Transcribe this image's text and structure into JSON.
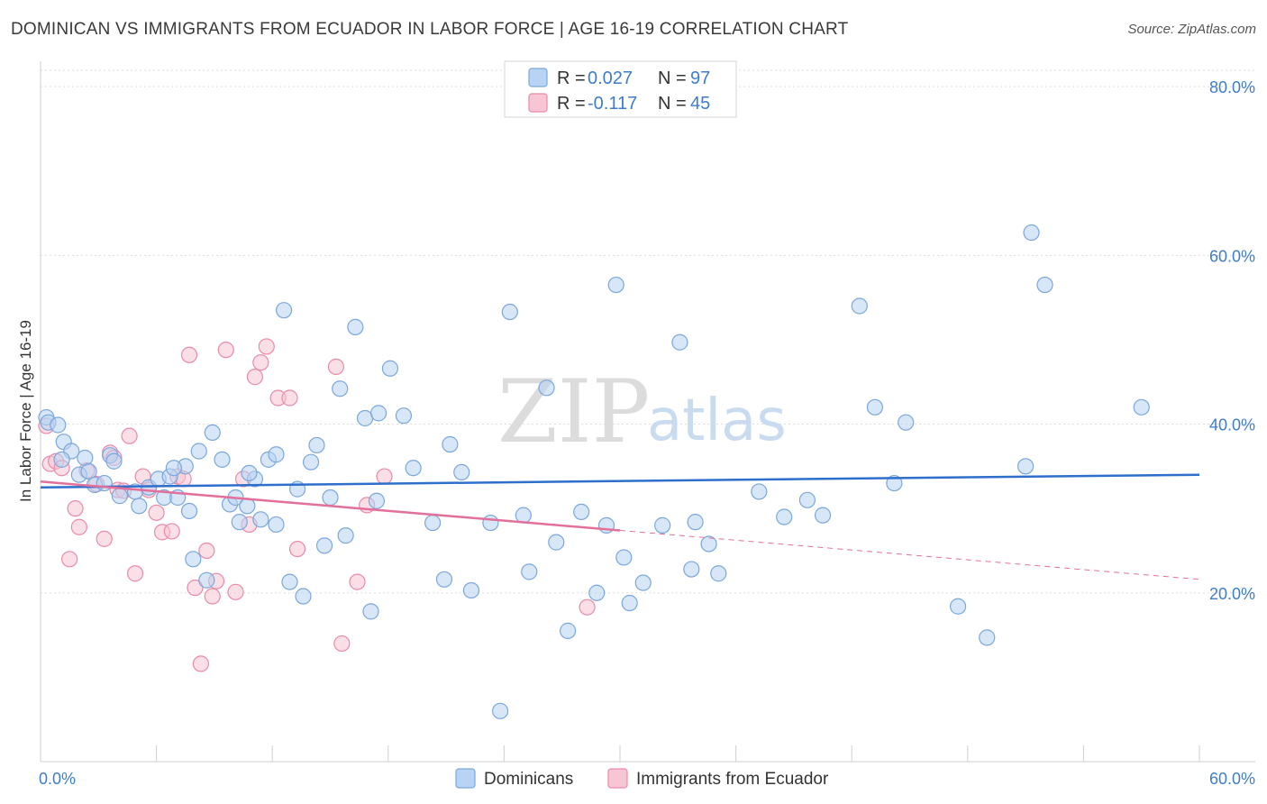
{
  "title": "DOMINICAN VS IMMIGRANTS FROM ECUADOR IN LABOR FORCE | AGE 16-19 CORRELATION CHART",
  "source": "Source: ZipAtlas.com",
  "watermark": {
    "zip": "ZIP",
    "atlas": "atlas"
  },
  "colors": {
    "blue_fill": "#b8d3f3",
    "blue_stroke": "#7aa7dc",
    "blue_line": "#2e6fcb",
    "pink_fill": "#f8c5d4",
    "pink_stroke": "#e98aa8",
    "pink_line": "#e2709a",
    "tick_text": "#3d7dcc",
    "grid": "#dddddd"
  },
  "legend": {
    "series1": {
      "r_label": "R =",
      "r_value": "0.027",
      "n_label": "N =",
      "n_value": "97"
    },
    "series2": {
      "r_label": "R =",
      "r_value": "-0.117",
      "n_label": "N =",
      "n_value": "45"
    }
  },
  "bottom_legend": [
    "Dominicans",
    "Immigrants from Ecuador"
  ],
  "chart_data": {
    "type": "scatter",
    "title": "DOMINICAN VS IMMIGRANTS FROM ECUADOR IN LABOR FORCE | AGE 16-19 CORRELATION CHART",
    "xlabel": "",
    "ylabel": "In Labor Force | Age 16-19",
    "xlim": [
      0,
      60
    ],
    "ylim": [
      0,
      83
    ],
    "x_tick_labels": [
      "0.0%",
      "60.0%"
    ],
    "y_ticks": [
      20,
      40,
      60,
      80
    ],
    "y_tick_labels": [
      "20.0%",
      "40.0%",
      "60.0%",
      "80.0%"
    ],
    "grid": true,
    "series": [
      {
        "name": "Dominicans",
        "R": 0.027,
        "N": 97,
        "trend": {
          "x": [
            0,
            60
          ],
          "y": [
            32.5,
            34.0
          ]
        },
        "points": [
          [
            0.3,
            40.8
          ],
          [
            0.4,
            40.2
          ],
          [
            0.9,
            39.9
          ],
          [
            1.2,
            37.9
          ],
          [
            1.6,
            36.8
          ],
          [
            2.0,
            34.0
          ],
          [
            2.3,
            36.0
          ],
          [
            2.5,
            34.4
          ],
          [
            2.8,
            32.8
          ],
          [
            3.3,
            33.0
          ],
          [
            3.6,
            36.3
          ],
          [
            4.1,
            31.5
          ],
          [
            4.9,
            32.0
          ],
          [
            5.1,
            30.3
          ],
          [
            5.6,
            32.5
          ],
          [
            6.1,
            33.5
          ],
          [
            6.4,
            31.3
          ],
          [
            6.7,
            33.8
          ],
          [
            7.1,
            31.3
          ],
          [
            7.5,
            35.0
          ],
          [
            7.7,
            29.7
          ],
          [
            7.9,
            24.0
          ],
          [
            8.2,
            36.8
          ],
          [
            8.6,
            21.5
          ],
          [
            8.9,
            39.0
          ],
          [
            9.4,
            35.8
          ],
          [
            9.8,
            30.5
          ],
          [
            10.1,
            31.3
          ],
          [
            10.3,
            28.4
          ],
          [
            10.7,
            30.3
          ],
          [
            11.1,
            33.5
          ],
          [
            11.4,
            28.7
          ],
          [
            11.8,
            35.8
          ],
          [
            12.2,
            36.4
          ],
          [
            12.6,
            53.5
          ],
          [
            12.9,
            21.3
          ],
          [
            13.3,
            32.3
          ],
          [
            13.6,
            19.6
          ],
          [
            14.0,
            35.5
          ],
          [
            14.3,
            37.5
          ],
          [
            14.7,
            25.6
          ],
          [
            15.0,
            31.3
          ],
          [
            15.5,
            44.2
          ],
          [
            15.8,
            26.8
          ],
          [
            16.3,
            51.5
          ],
          [
            16.8,
            40.7
          ],
          [
            17.1,
            17.8
          ],
          [
            17.5,
            41.3
          ],
          [
            18.1,
            46.6
          ],
          [
            18.8,
            41.0
          ],
          [
            19.3,
            34.8
          ],
          [
            20.3,
            28.3
          ],
          [
            20.9,
            21.6
          ],
          [
            21.2,
            37.6
          ],
          [
            21.8,
            34.3
          ],
          [
            22.3,
            20.3
          ],
          [
            23.3,
            28.3
          ],
          [
            23.8,
            6.0
          ],
          [
            24.3,
            53.3
          ],
          [
            25.3,
            22.5
          ],
          [
            26.2,
            44.3
          ],
          [
            26.7,
            26.0
          ],
          [
            27.3,
            15.5
          ],
          [
            28.0,
            29.6
          ],
          [
            28.8,
            20.0
          ],
          [
            29.3,
            28.0
          ],
          [
            29.8,
            56.5
          ],
          [
            30.2,
            24.2
          ],
          [
            30.5,
            18.8
          ],
          [
            31.2,
            21.2
          ],
          [
            32.2,
            28.0
          ],
          [
            33.1,
            49.7
          ],
          [
            33.7,
            22.8
          ],
          [
            34.6,
            25.8
          ],
          [
            35.1,
            22.3
          ],
          [
            37.2,
            32.0
          ],
          [
            38.5,
            29.0
          ],
          [
            39.7,
            31.0
          ],
          [
            40.5,
            29.2
          ],
          [
            42.4,
            54.0
          ],
          [
            43.2,
            42.0
          ],
          [
            44.2,
            33.0
          ],
          [
            44.8,
            40.2
          ],
          [
            47.5,
            18.4
          ],
          [
            49.0,
            14.7
          ],
          [
            51.0,
            35.0
          ],
          [
            51.3,
            62.7
          ],
          [
            52.0,
            56.5
          ],
          [
            57.0,
            42.0
          ],
          [
            10.8,
            34.2
          ],
          [
            6.9,
            34.8
          ],
          [
            3.8,
            35.6
          ],
          [
            1.1,
            35.8
          ],
          [
            17.4,
            30.9
          ],
          [
            12.2,
            28.1
          ],
          [
            25.0,
            29.2
          ],
          [
            33.9,
            28.4
          ]
        ]
      },
      {
        "name": "Immigrants from Ecuador",
        "R": -0.117,
        "N": 45,
        "trend_solid": {
          "x": [
            0,
            30
          ],
          "y": [
            33.2,
            27.4
          ]
        },
        "trend_dashed": {
          "x": [
            30,
            60
          ],
          "y": [
            27.4,
            21.6
          ]
        },
        "points": [
          [
            0.3,
            39.8
          ],
          [
            0.5,
            35.3
          ],
          [
            0.8,
            35.6
          ],
          [
            1.1,
            34.8
          ],
          [
            1.5,
            24.0
          ],
          [
            1.8,
            30.0
          ],
          [
            2.0,
            27.8
          ],
          [
            2.4,
            34.5
          ],
          [
            2.9,
            32.9
          ],
          [
            3.3,
            26.4
          ],
          [
            3.6,
            36.6
          ],
          [
            3.8,
            36.0
          ],
          [
            4.0,
            32.2
          ],
          [
            4.3,
            32.1
          ],
          [
            4.6,
            38.6
          ],
          [
            4.9,
            22.3
          ],
          [
            5.3,
            33.8
          ],
          [
            5.6,
            32.2
          ],
          [
            6.0,
            29.5
          ],
          [
            6.3,
            27.2
          ],
          [
            6.8,
            27.3
          ],
          [
            7.1,
            33.8
          ],
          [
            7.4,
            33.5
          ],
          [
            7.7,
            48.2
          ],
          [
            8.0,
            20.6
          ],
          [
            8.3,
            11.6
          ],
          [
            8.6,
            25.0
          ],
          [
            8.9,
            19.6
          ],
          [
            9.1,
            21.4
          ],
          [
            9.6,
            48.8
          ],
          [
            10.1,
            20.1
          ],
          [
            10.5,
            33.5
          ],
          [
            10.8,
            28.1
          ],
          [
            11.1,
            45.6
          ],
          [
            11.4,
            47.3
          ],
          [
            11.7,
            49.2
          ],
          [
            12.3,
            43.1
          ],
          [
            12.9,
            43.1
          ],
          [
            13.3,
            25.2
          ],
          [
            15.3,
            46.8
          ],
          [
            15.6,
            14.0
          ],
          [
            16.4,
            21.3
          ],
          [
            16.9,
            30.4
          ],
          [
            17.8,
            33.8
          ],
          [
            28.3,
            18.3
          ]
        ]
      }
    ]
  }
}
